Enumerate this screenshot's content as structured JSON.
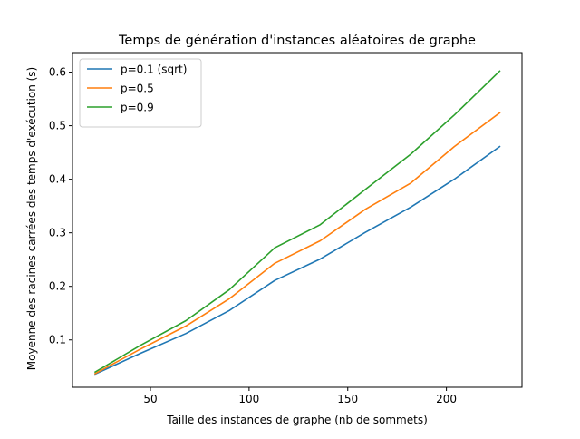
{
  "chart_data": {
    "type": "line",
    "title": "Temps de génération d'instances aléatoires de graphe",
    "xlabel": "Taille des instances de graphe (nb de sommets)",
    "ylabel": "Moyenne des racines carrées des temps d'exécution (s)",
    "xlim": [
      10.5,
      238.3
    ],
    "ylim": [
      0.0115,
      0.6365
    ],
    "xticks": [
      50,
      100,
      150,
      200
    ],
    "yticks": [
      0.1,
      0.2,
      0.3,
      0.4,
      0.5,
      0.6
    ],
    "xtick_labels": [
      "50",
      "100",
      "150",
      "200"
    ],
    "ytick_labels": [
      "0.1",
      "0.2",
      "0.3",
      "0.4",
      "0.5",
      "0.6"
    ],
    "grid": false,
    "legend_position": "top-left",
    "x": [
      22,
      45,
      68,
      90,
      113,
      136,
      159,
      182,
      204,
      227
    ],
    "series": [
      {
        "name": "p=0.1 (sqrt)",
        "color": "#1f77b4",
        "values": [
          0.036,
          0.075,
          0.112,
          0.155,
          0.211,
          0.251,
          0.301,
          0.348,
          0.4,
          0.461
        ]
      },
      {
        "name": "p=0.5",
        "color": "#ff7f0e",
        "values": [
          0.037,
          0.083,
          0.126,
          0.177,
          0.243,
          0.285,
          0.344,
          0.393,
          0.461,
          0.524
        ]
      },
      {
        "name": "p=0.9",
        "color": "#2ca02c",
        "values": [
          0.04,
          0.09,
          0.136,
          0.194,
          0.272,
          0.315,
          0.381,
          0.447,
          0.52,
          0.602
        ]
      }
    ]
  }
}
